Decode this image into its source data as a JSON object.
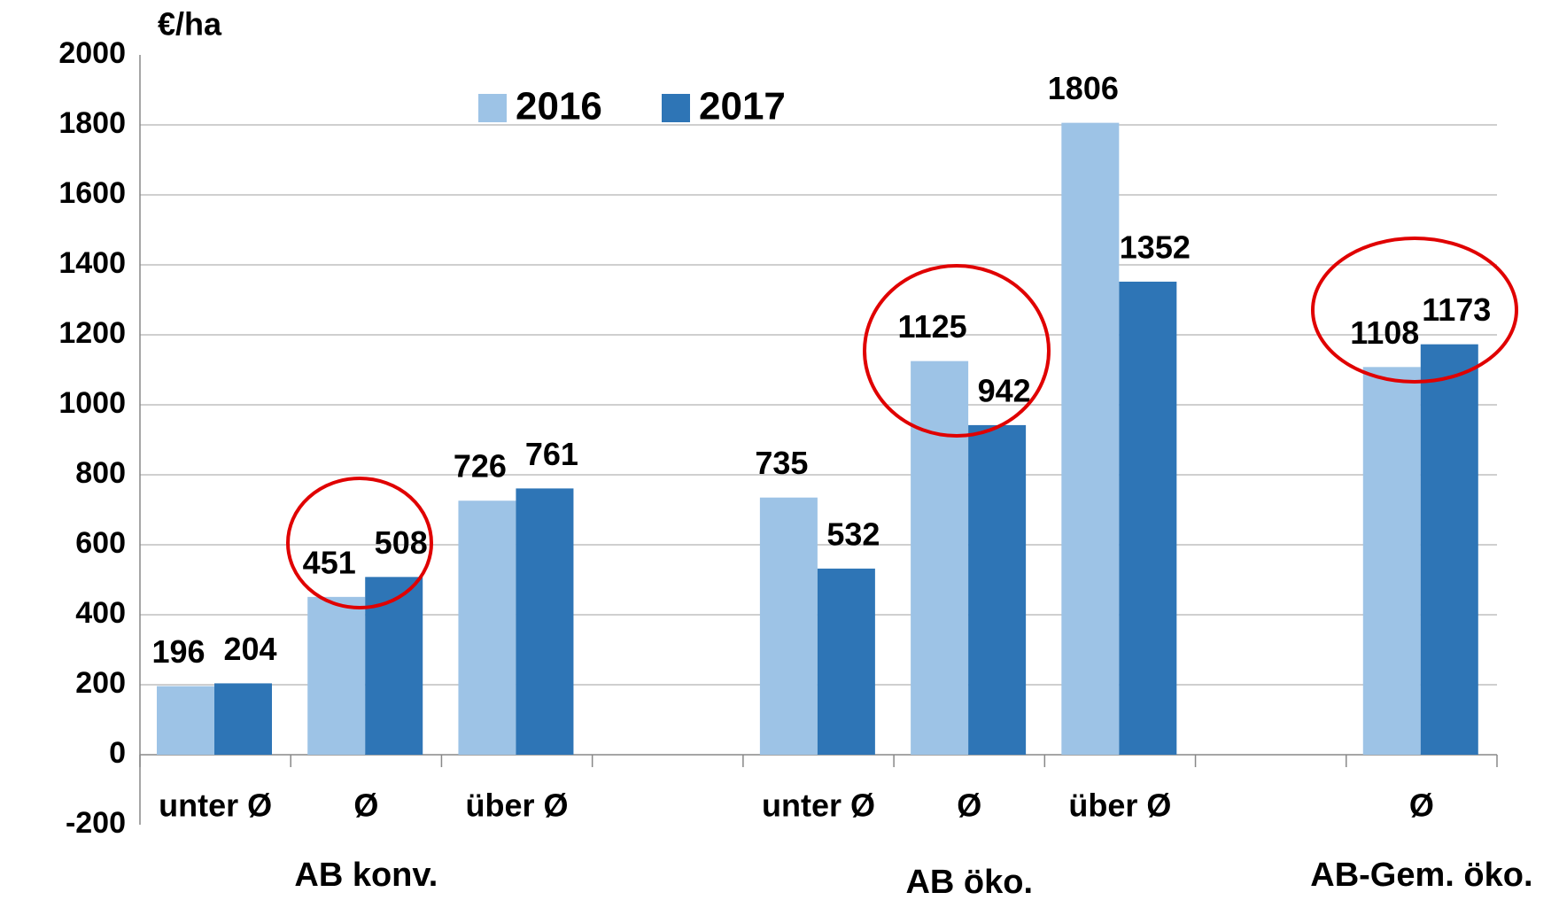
{
  "chart_data": {
    "type": "bar",
    "y_label": "€/ha",
    "categories": [
      "unter Ø",
      "Ø",
      "über Ø",
      null,
      "unter Ø",
      "Ø",
      "über Ø",
      null,
      "Ø"
    ],
    "groups": [
      "AB konv.",
      "AB öko.",
      "AB-Gem. öko."
    ],
    "series": [
      {
        "name": "2016",
        "color": "#9dc3e6",
        "values": [
          196,
          451,
          726,
          null,
          735,
          1125,
          1806,
          null,
          1108
        ]
      },
      {
        "name": "2017",
        "color": "#2e75b6",
        "values": [
          204,
          508,
          761,
          null,
          532,
          942,
          1352,
          null,
          1173
        ]
      }
    ],
    "ylim": [
      -200,
      2000
    ],
    "yticks": [
      -200,
      0,
      200,
      400,
      600,
      800,
      1000,
      1200,
      1400,
      1600,
      1800,
      2000
    ],
    "grid": true,
    "legend": "top"
  }
}
